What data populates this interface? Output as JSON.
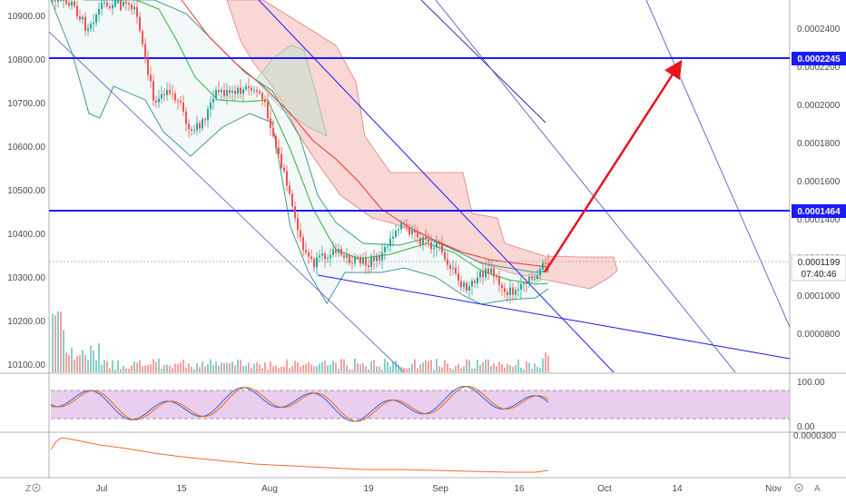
{
  "chart_data": {
    "type": "candlestick",
    "left_axis": {
      "ticks": [
        "10900.00",
        "10800.00",
        "10700.00",
        "10600.00",
        "10500.00",
        "10400.00",
        "10300.00",
        "10200.00",
        "10100.00"
      ]
    },
    "right_axis": {
      "ticks": [
        "0.0002400",
        "0.0002200",
        "0.0002000",
        "0.0001800",
        "0.0001600",
        "0.0001400",
        "0.0001200",
        "0.0001000",
        "0.0000800"
      ]
    },
    "x_axis": {
      "ticks": [
        "Jul",
        "15",
        "Aug",
        "19",
        "Sep",
        "16",
        "Oct",
        "14",
        "Nov"
      ]
    },
    "price_labels": {
      "upper_line": "0.0002245",
      "middle_line": "0.0001464",
      "last_price": "0.0001199",
      "countdown": "07:40:46"
    },
    "stoch_axis": {
      "ticks": [
        "100.00",
        "0.00"
      ]
    },
    "lower_axis": {
      "ticks": [
        "0.0000300"
      ]
    },
    "corner_labels": {
      "left": "Z",
      "right": "A"
    },
    "colors": {
      "up": "#26a69a",
      "down": "#ef5350",
      "level_line": "#1a1aff",
      "arrow": "#e8141b",
      "stoch_band": "#e1bee7"
    }
  }
}
